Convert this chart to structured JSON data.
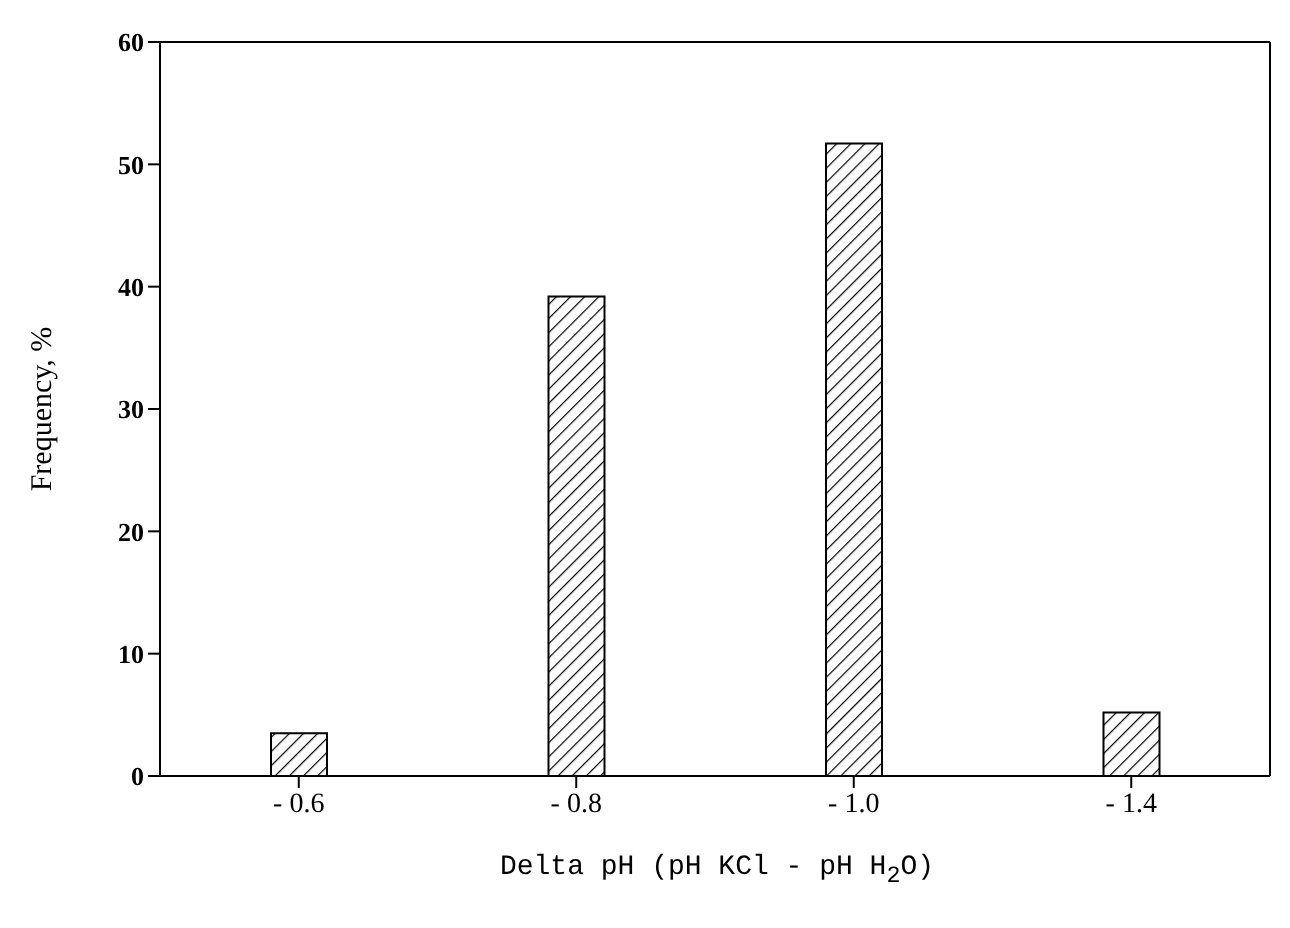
{
  "chart_data": {
    "type": "bar",
    "xlabel": "Delta pH (pH KCl - pH H$_{2}$O)",
    "ylabel": "Frequency, %",
    "categories": [
      "- 0.6",
      "- 0.8",
      "- 1.0",
      "- 1.4"
    ],
    "values": [
      3.5,
      39.2,
      51.7,
      5.2
    ],
    "color": "#000000",
    "ylim": [
      0,
      60
    ],
    "yticks": [
      0,
      10,
      20,
      30,
      40,
      50,
      60
    ],
    "grid": false,
    "legend": false
  }
}
